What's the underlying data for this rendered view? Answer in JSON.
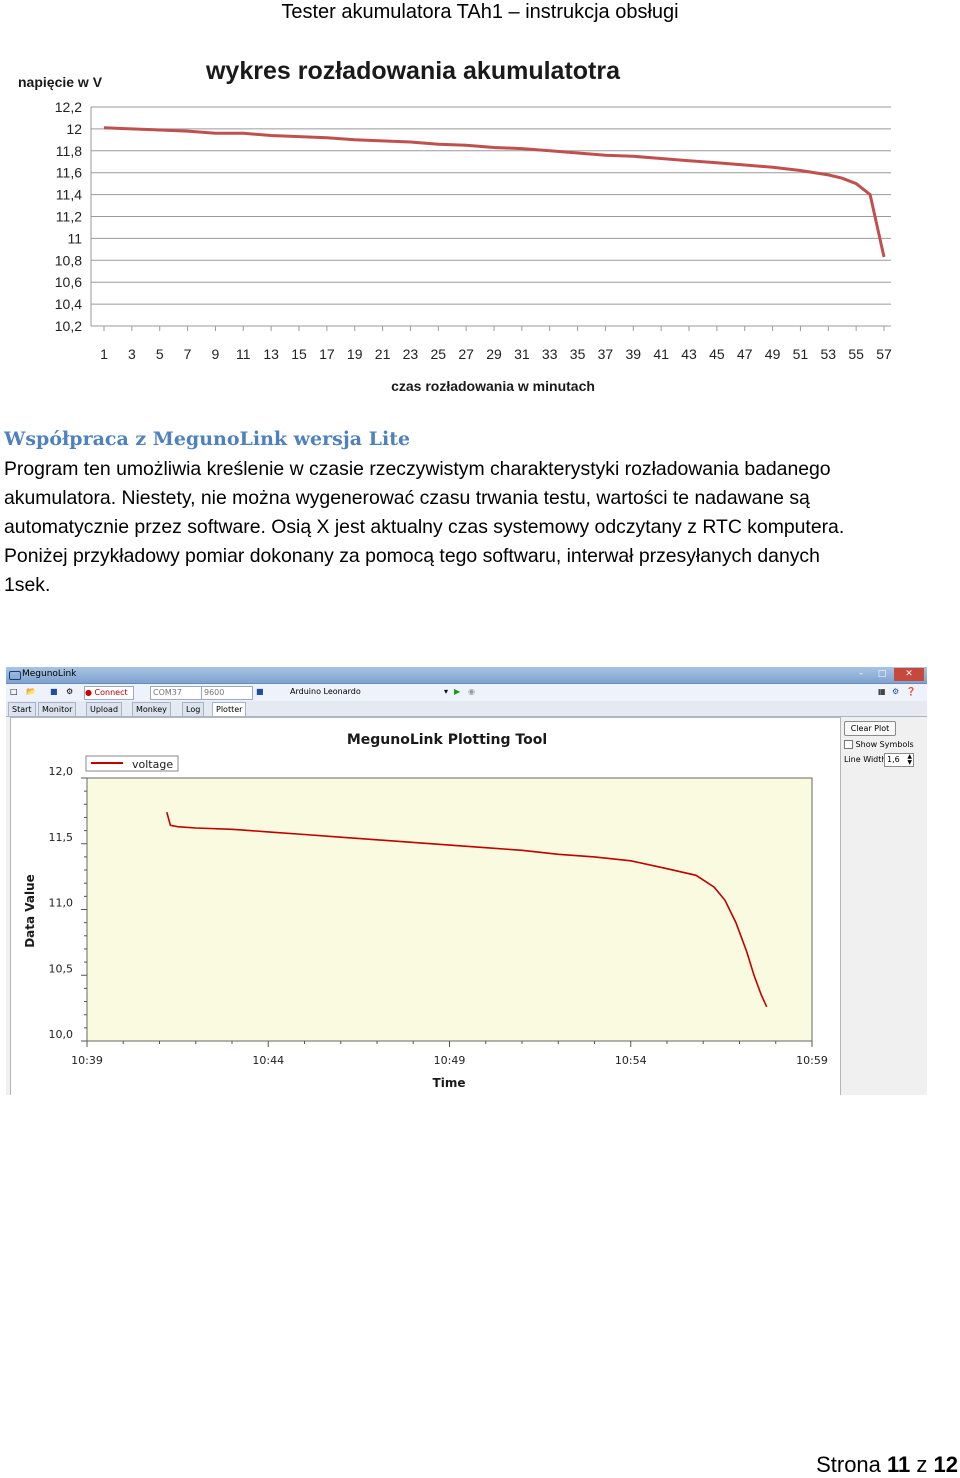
{
  "page": {
    "header": "Tester akumulatora TAh1 – instrukcja obsługi",
    "section_title": "Współpraca z MegunoLink wersja Lite",
    "paragraph_lines": [
      "Program ten umożliwia kreślenie w czasie rzeczywistym charakterystyki rozładowania badanego",
      "akumulatora. Niestety, nie można wygenerować czasu trwania testu, wartości te nadawane są",
      "automatycznie przez software. Osią  X jest aktualny czas systemowy odczytany z RTC komputera.",
      "Poniżej  przykładowy pomiar dokonany za pomocą tego softwaru, interwał przesyłanych danych",
      "1sek."
    ],
    "footer": {
      "prefix": "Strona ",
      "page": "11",
      "sep": " z ",
      "total": "12"
    }
  },
  "meguno": {
    "window_title": "MegunoLink",
    "connect_label": "Connect",
    "port": "COM37",
    "baud": "9600",
    "board": "Arduino Leonardo",
    "tabs": [
      "Start",
      "Monitor",
      "Upload",
      "Monkey",
      "Log",
      "Plotter"
    ],
    "active_tab": "Plotter",
    "clear_plot_label": "Clear Plot",
    "show_symbols_label": "Show Symbols",
    "line_width_label": "Line Width",
    "line_width_value": "1,6"
  },
  "chart_data": [
    {
      "type": "line",
      "title": "wykres rozładowania akumulatotra",
      "ylabel": "napięcie w V",
      "xlabel": "czas rozładowania w minutach",
      "x_ticks": [
        "1",
        "3",
        "5",
        "7",
        "9",
        "11",
        "13",
        "15",
        "17",
        "19",
        "21",
        "23",
        "25",
        "27",
        "29",
        "31",
        "33",
        "35",
        "37",
        "39",
        "41",
        "43",
        "45",
        "47",
        "49",
        "51",
        "53",
        "55",
        "57"
      ],
      "y_ticks": [
        "12,2",
        "12",
        "11,8",
        "11,6",
        "11,4",
        "11,2",
        "11",
        "10,8",
        "10,6",
        "10,4",
        "10,2"
      ],
      "ylim": [
        10.2,
        12.2
      ],
      "xlim": [
        1,
        57
      ],
      "grid": true,
      "line_color": "#c0504d",
      "series": [
        {
          "x": [
            1,
            3,
            5,
            7,
            9,
            11,
            13,
            15,
            17,
            19,
            21,
            23,
            25,
            27,
            29,
            31,
            33,
            35,
            37,
            39,
            41,
            43,
            45,
            47,
            49,
            51,
            53,
            54,
            55,
            56,
            57
          ],
          "y": [
            12.01,
            12.0,
            11.99,
            11.98,
            11.96,
            11.96,
            11.94,
            11.93,
            11.92,
            11.9,
            11.89,
            11.88,
            11.86,
            11.85,
            11.83,
            11.82,
            11.8,
            11.78,
            11.76,
            11.75,
            11.73,
            11.71,
            11.69,
            11.67,
            11.65,
            11.62,
            11.58,
            11.55,
            11.5,
            11.4,
            10.83
          ]
        }
      ]
    },
    {
      "type": "line",
      "title": "MegunoLink Plotting Tool",
      "ylabel": "Data Value",
      "xlabel": "Time",
      "x_ticks": [
        "10:39",
        "10:44",
        "10:49",
        "10:54",
        "10:59"
      ],
      "y_ticks": [
        "12,0",
        "11,5",
        "11,0",
        "10,5",
        "10,0"
      ],
      "ylim": [
        10.0,
        12.0
      ],
      "xlim": [
        0,
        20
      ],
      "grid": false,
      "background": "#fafae0",
      "line_color": "#c00000",
      "series": [
        {
          "name": "voltage",
          "x": [
            2.2,
            2.3,
            2.5,
            3.0,
            4.0,
            5.0,
            6.0,
            7.0,
            8.0,
            9.0,
            10.0,
            11.0,
            12.0,
            13.0,
            14.0,
            15.0,
            16.0,
            16.8,
            17.3,
            17.6,
            17.9,
            18.2,
            18.4,
            18.6,
            18.75
          ],
          "y": [
            11.74,
            11.64,
            11.63,
            11.62,
            11.61,
            11.59,
            11.57,
            11.55,
            11.53,
            11.51,
            11.49,
            11.47,
            11.45,
            11.42,
            11.4,
            11.37,
            11.31,
            11.26,
            11.17,
            11.07,
            10.9,
            10.68,
            10.5,
            10.35,
            10.26
          ]
        }
      ]
    }
  ]
}
